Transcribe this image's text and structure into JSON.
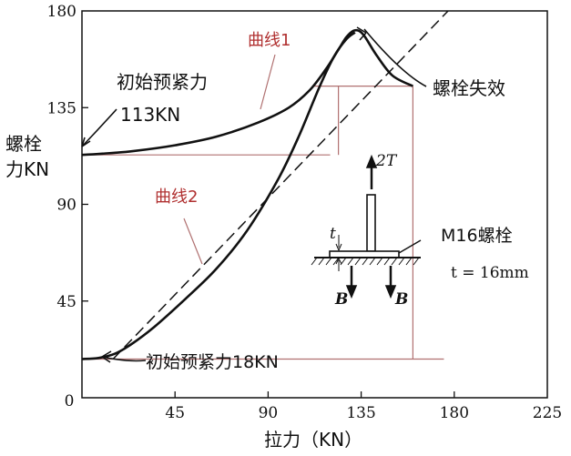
{
  "chart_data": {
    "type": "line",
    "xlabel": "拉力（KN）",
    "ylabel_line1": "螺栓",
    "ylabel_line2": "力KN",
    "xlim": [
      0,
      225
    ],
    "ylim": [
      0,
      180
    ],
    "x_ticks": [
      0,
      45,
      90,
      135,
      180,
      225
    ],
    "y_ticks": [
      45,
      90,
      135,
      180
    ],
    "grid": false,
    "series": [
      {
        "name": "曲线1",
        "color": "#111111",
        "x": [
          0,
          10,
          25,
          45,
          65,
          85,
          100,
          110,
          118,
          124,
          128,
          132,
          136,
          142,
          150,
          160
        ],
        "y": [
          113,
          113.6,
          114.8,
          117.5,
          121.5,
          128,
          135,
          143,
          153,
          162,
          168,
          171,
          169,
          160,
          150,
          145
        ]
      },
      {
        "name": "曲线2",
        "color": "#111111",
        "x": [
          0,
          8,
          16,
          24,
          35,
          50,
          65,
          80,
          95,
          105,
          115,
          122,
          128,
          132
        ],
        "y": [
          18,
          18.5,
          20.5,
          25,
          33,
          46,
          60,
          78,
          102,
          122,
          145,
          159,
          167,
          170
        ]
      },
      {
        "name": "",
        "style": "dashed",
        "color": "#111111",
        "x": [
          15,
          177
        ],
        "y": [
          18,
          180
        ]
      }
    ],
    "guides": {
      "red_color": "#b07070",
      "hlines": [
        {
          "y": 18,
          "x0": 0,
          "x1": 175
        },
        {
          "y": 113,
          "x0": 0,
          "x1": 120
        },
        {
          "y": 145,
          "x0": 112,
          "x1": 160
        }
      ],
      "vlines": [
        {
          "x": 124,
          "y0": 113,
          "y1": 145
        },
        {
          "x": 160,
          "y0": 18,
          "y1": 145
        }
      ]
    },
    "annotations": {
      "curve1_label": "曲线1",
      "curve2_label": "曲线2",
      "preload_high_line1": "初始预紧力",
      "preload_high_line2": "113KN",
      "preload_low": "初始预紧力18KN",
      "bolt_failure": "螺栓失效",
      "bolt_spec": "M16螺栓",
      "thickness": "t = 16mm",
      "force_label": "2T",
      "reaction_left": "B",
      "reaction_right": "B",
      "t_mark": "t"
    }
  }
}
